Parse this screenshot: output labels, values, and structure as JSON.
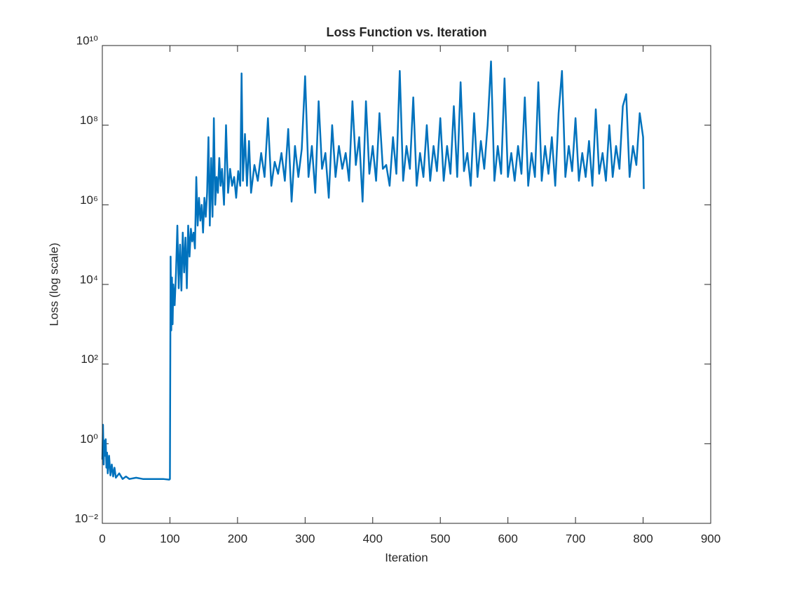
{
  "chart_data": {
    "type": "line",
    "title": "Loss Function vs. Iteration",
    "xlabel": "Iteration",
    "ylabel": "Loss (log scale)",
    "yscale": "log",
    "box": true,
    "xlim": [
      0,
      900
    ],
    "xticks": [
      0,
      100,
      200,
      300,
      400,
      500,
      600,
      700,
      800,
      900
    ],
    "ylim": [
      0.01,
      10000000000
    ],
    "yticks": [
      {
        "value": 0.01,
        "label": "10⁻²"
      },
      {
        "value": 1,
        "label": "10⁰"
      },
      {
        "value": 100,
        "label": "10²"
      },
      {
        "value": 10000,
        "label": "10⁴"
      },
      {
        "value": 1000000,
        "label": "10⁶"
      },
      {
        "value": 100000000,
        "label": "10⁸"
      },
      {
        "value": 10000000000,
        "label": "10¹⁰"
      }
    ],
    "series": [
      {
        "color": "#0072bd",
        "x": [
          0,
          1,
          2,
          3,
          4,
          5,
          6,
          7,
          8,
          10,
          12,
          14,
          16,
          18,
          20,
          25,
          30,
          35,
          40,
          50,
          60,
          70,
          80,
          90,
          99,
          100,
          101,
          102,
          103,
          104,
          105,
          107,
          109,
          111,
          113,
          115,
          117,
          119,
          121,
          123,
          125,
          127,
          129,
          131,
          133,
          135,
          137,
          139,
          141,
          143,
          145,
          147,
          149,
          151,
          153,
          155,
          157,
          159,
          161,
          163,
          165,
          167,
          169,
          171,
          173,
          175,
          177,
          180,
          183,
          186,
          189,
          192,
          195,
          198,
          201,
          204,
          206,
          208,
          211,
          214,
          217,
          220,
          225,
          230,
          235,
          240,
          245,
          250,
          255,
          260,
          265,
          270,
          275,
          280,
          285,
          290,
          295,
          300,
          305,
          310,
          315,
          320,
          325,
          330,
          335,
          340,
          345,
          350,
          355,
          360,
          365,
          370,
          375,
          380,
          385,
          390,
          395,
          400,
          405,
          410,
          415,
          420,
          425,
          430,
          435,
          440,
          445,
          450,
          455,
          460,
          465,
          470,
          475,
          480,
          485,
          490,
          495,
          500,
          505,
          510,
          515,
          520,
          525,
          530,
          535,
          540,
          545,
          550,
          555,
          560,
          565,
          570,
          575,
          580,
          585,
          590,
          595,
          600,
          605,
          610,
          615,
          620,
          625,
          630,
          635,
          640,
          645,
          650,
          655,
          660,
          665,
          670,
          675,
          680,
          685,
          690,
          695,
          700,
          705,
          710,
          715,
          720,
          725,
          730,
          735,
          740,
          745,
          750,
          755,
          760,
          765,
          770,
          775,
          780,
          785,
          790,
          795,
          800,
          801
        ],
        "values": [
          0.4,
          3,
          0.3,
          1.2,
          0.5,
          1.3,
          0.25,
          0.6,
          0.18,
          0.5,
          0.16,
          0.3,
          0.15,
          0.25,
          0.14,
          0.18,
          0.13,
          0.15,
          0.13,
          0.14,
          0.13,
          0.13,
          0.13,
          0.13,
          0.125,
          0.13,
          50000,
          700,
          15000,
          1000,
          10000,
          3000,
          20000,
          300000,
          8000,
          100000,
          7000,
          200000,
          20000,
          150000,
          8000,
          300000,
          50000,
          250000,
          120000,
          200000,
          80000,
          5000000,
          300000,
          1500000,
          400000,
          1000000,
          200000,
          1500000,
          500000,
          2000000,
          50000000,
          300000,
          15000000,
          500000,
          150000000,
          1000000,
          5000000,
          2000000,
          15000000,
          3000000,
          8000000,
          1000000,
          100000000,
          2000000,
          8000000,
          3000000,
          5000000,
          1500000,
          7000000,
          3000000,
          2000000000,
          4000000,
          60000000,
          3000000,
          40000000,
          2000000,
          10000000,
          4000000,
          20000000,
          5000000,
          150000000,
          3000000,
          12000000,
          6000000,
          20000000,
          4000000,
          80000000,
          1200000,
          30000000,
          5000000,
          25000000,
          1700000000,
          5000000,
          30000000,
          2000000,
          400000000,
          8000000,
          20000000,
          1500000,
          100000000,
          5000000,
          30000000,
          8000000,
          20000000,
          4000000,
          400000000,
          10000000,
          50000000,
          1200000,
          400000000,
          6000000,
          30000000,
          4000000,
          200000000,
          8000000,
          10000000,
          3000000,
          50000000,
          6000000,
          2300000000,
          4000000,
          30000000,
          8000000,
          500000000,
          3000000,
          20000000,
          5000000,
          100000000,
          4000000,
          30000000,
          7000000,
          150000000,
          4000000,
          30000000,
          6000000,
          300000000,
          5000000,
          1200000000,
          7000000,
          20000000,
          3000000,
          200000000,
          5000000,
          40000000,
          8000000,
          100000000,
          4000000000,
          4000000,
          30000000,
          6000000,
          1500000000,
          5000000,
          20000000,
          4000000,
          30000000,
          6000000,
          500000000,
          3000000,
          20000000,
          5000000,
          1200000000,
          4000000,
          30000000,
          6000000,
          50000000,
          3000000,
          200000000,
          2300000000,
          5000000,
          30000000,
          7000000,
          150000000,
          4000000,
          20000000,
          5000000,
          40000000,
          3000000,
          250000000,
          6000000,
          20000000,
          4000000,
          100000000,
          5000000,
          30000000,
          8000000,
          300000000,
          600000000,
          5000000,
          30000000,
          10000000,
          200000000,
          50000000,
          2500000
        ]
      }
    ]
  }
}
